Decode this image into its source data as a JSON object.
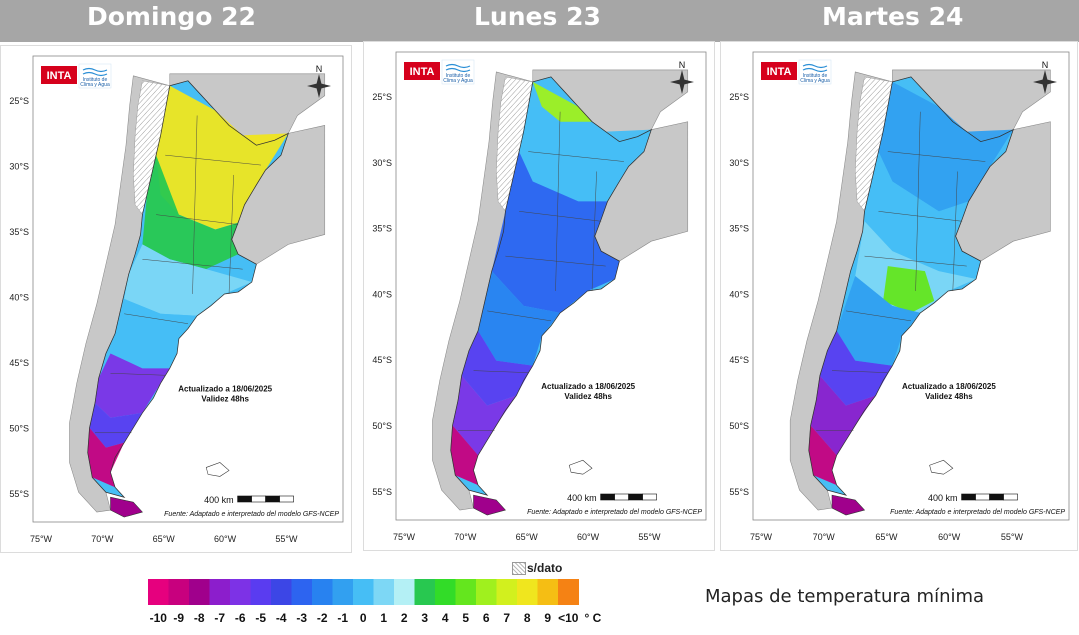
{
  "days": [
    {
      "title": "Domingo 22"
    },
    {
      "title": "Lunes 23"
    },
    {
      "title": "Martes 24"
    }
  ],
  "map": {
    "logo": "INTA",
    "institute_line1": "Instituto de",
    "institute_line2": "Clima y Agua",
    "north": "N",
    "lat_labels": [
      "25°S",
      "30°S",
      "35°S",
      "40°S",
      "45°S",
      "50°S",
      "55°S"
    ],
    "lon_labels": [
      "75°W",
      "70°W",
      "65°W",
      "60°W",
      "55°W"
    ],
    "updated": "Actualizado a 18/06/2025",
    "validity": "Validez 48hs",
    "scale_label": "400 km",
    "source": "Fuente: Adaptado e interpretado del modelo GFS-NCEP"
  },
  "legend": {
    "no_data_label": "s/dato",
    "ticks": [
      "-10",
      "-9",
      "-8",
      "-7",
      "-6",
      "-5",
      "-4",
      "-3",
      "-2",
      "-1",
      "0",
      "1",
      "2",
      "3",
      "4",
      "5",
      "6",
      "7",
      "8",
      "9",
      "<10"
    ],
    "unit": "° C",
    "colors": [
      "#e6007e",
      "#c8007e",
      "#a0008c",
      "#8c1ecc",
      "#7d32e6",
      "#5a3cf0",
      "#3c46e6",
      "#2d64f0",
      "#2882f0",
      "#32a0f0",
      "#46bef5",
      "#7dd7f5",
      "#b4f0f5",
      "#28c850",
      "#32dc28",
      "#64e61e",
      "#a0f01e",
      "#d2f01e",
      "#f0e61e",
      "#f5be14",
      "#f58214"
    ],
    "caption": "Mapas de temperatura mínima"
  }
}
